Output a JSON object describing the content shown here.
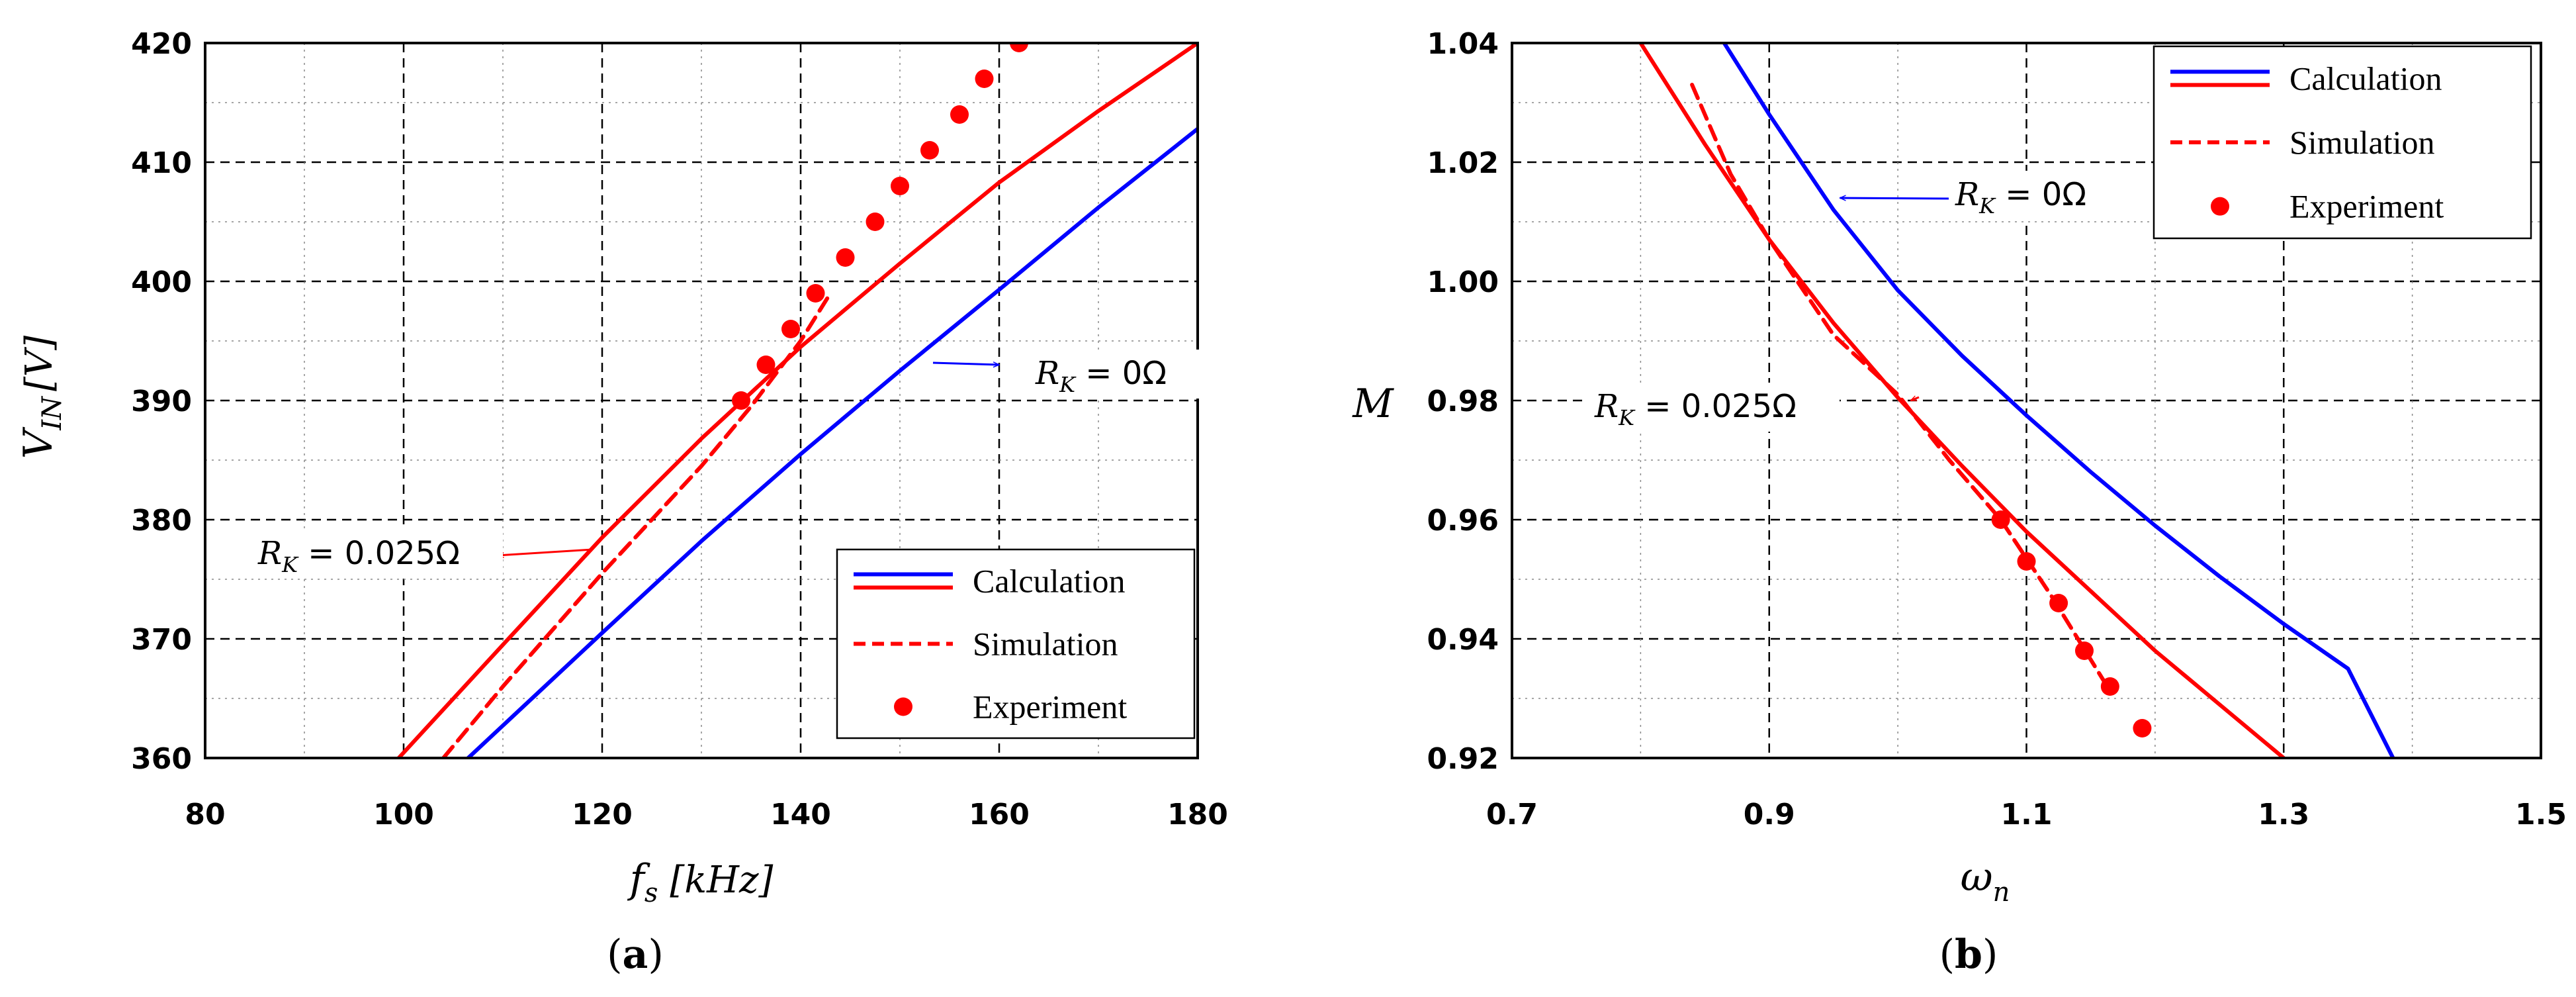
{
  "chart_data": [
    {
      "type": "line",
      "id": "a",
      "caption": {
        "open": "(",
        "letter": "a",
        "close": ")"
      },
      "xlabel": {
        "main": "f",
        "sub": "s",
        "unit": "[kHz]"
      },
      "ylabel": {
        "main": "V",
        "sub": "IN",
        "unit": "[V]"
      },
      "xlim": [
        80,
        180
      ],
      "ylim": [
        360,
        420
      ],
      "xticks": [
        80,
        100,
        120,
        140,
        160,
        180
      ],
      "yticks": [
        360,
        370,
        380,
        390,
        400,
        410,
        420
      ],
      "xtick_labels": [
        "80",
        "100",
        "120",
        "140",
        "160",
        "180"
      ],
      "ytick_labels": [
        "360",
        "370",
        "380",
        "390",
        "400",
        "410",
        "420"
      ],
      "grid": true,
      "series": [
        {
          "name": "Calculation",
          "label_group": "R_K = 0Ω",
          "color": "#0000ff",
          "style": "solid",
          "x": [
            106.5,
            120,
            130,
            140,
            150,
            160,
            170,
            180
          ],
          "y": [
            360,
            370.5,
            378.2,
            385.5,
            392.5,
            399.3,
            406.2,
            412.8
          ]
        },
        {
          "name": "Calculation",
          "label_group": "R_K = 0.025Ω",
          "color": "#ff0000",
          "style": "solid",
          "x": [
            99.5,
            110,
            120,
            130,
            140,
            150,
            160,
            170,
            180
          ],
          "y": [
            360,
            369.5,
            378.5,
            386.8,
            394.5,
            401.5,
            408.3,
            414.3,
            420
          ]
        },
        {
          "name": "Simulation",
          "label_group": "R_K = 0.025Ω",
          "color": "#ff0000",
          "style": "dashed",
          "x": [
            104,
            110,
            120,
            130,
            135,
            140,
            143
          ],
          "y": [
            360,
            366,
            375.5,
            384.5,
            389.5,
            395,
            399
          ]
        },
        {
          "name": "Experiment",
          "color": "#ff0000",
          "style": "markers",
          "x": [
            134,
            136.5,
            139,
            141.5,
            144.5,
            147.5,
            150,
            153,
            156,
            158.5,
            162
          ],
          "y": [
            390,
            393,
            396,
            399,
            402,
            405,
            408,
            411,
            414,
            417,
            420
          ]
        }
      ],
      "legend": {
        "position": "bottom-right",
        "entries": [
          "Calculation",
          "Simulation",
          "Experiment"
        ]
      },
      "annotations": [
        {
          "main": "R",
          "sub": "K",
          "rest": " = 0Ω",
          "arrow_to": [
            160,
            393
          ]
        },
        {
          "main": "R",
          "sub": "K",
          "rest": " = 0.025Ω",
          "arrow_to": [
            109.5,
            377
          ]
        }
      ]
    },
    {
      "type": "line",
      "id": "b",
      "caption": {
        "open": "(",
        "letter": "b",
        "close": ")"
      },
      "xlabel": {
        "main": "ω",
        "sub": "n",
        "unit": ""
      },
      "ylabel": {
        "main": "M",
        "sub": "",
        "unit": ""
      },
      "xlim": [
        0.7,
        1.5
      ],
      "ylim": [
        0.92,
        1.04
      ],
      "xticks": [
        0.7,
        0.9,
        1.1,
        1.3,
        1.5
      ],
      "yticks": [
        0.92,
        0.94,
        0.96,
        0.98,
        1.0,
        1.02,
        1.04
      ],
      "xtick_labels": [
        "0.7",
        "0.9",
        "1.1",
        "1.3",
        "1.5"
      ],
      "ytick_labels": [
        "0.92",
        "0.94",
        "0.96",
        "0.98",
        "1.00",
        "1.02",
        "1.04"
      ],
      "grid": true,
      "series": [
        {
          "name": "Calculation",
          "label_group": "R_K = 0Ω",
          "color": "#0000ff",
          "style": "solid",
          "x": [
            0.865,
            0.9,
            0.95,
            1.0,
            1.05,
            1.1,
            1.15,
            1.2,
            1.25,
            1.3,
            1.35,
            1.385
          ],
          "y": [
            1.04,
            1.028,
            1.012,
            0.9985,
            0.9875,
            0.9775,
            0.968,
            0.959,
            0.9505,
            0.9425,
            0.935,
            0.92
          ]
        },
        {
          "name": "Calculation",
          "label_group": "R_K = 0.025Ω",
          "color": "#ff0000",
          "style": "solid",
          "x": [
            0.8,
            0.85,
            0.9,
            0.95,
            1.0,
            1.05,
            1.1,
            1.15,
            1.2,
            1.25,
            1.3
          ],
          "y": [
            1.04,
            1.023,
            1.007,
            0.993,
            0.9805,
            0.969,
            0.958,
            0.948,
            0.938,
            0.929,
            0.92
          ]
        },
        {
          "name": "Simulation",
          "label_group": "R_K = 0.025Ω",
          "color": "#ff0000",
          "style": "dashed",
          "x": [
            0.84,
            0.87,
            0.9,
            0.95,
            1.0,
            1.04,
            1.08,
            1.12,
            1.16
          ],
          "y": [
            1.033,
            1.018,
            1.007,
            0.991,
            0.981,
            0.97,
            0.96,
            0.947,
            0.933
          ]
        },
        {
          "name": "Experiment",
          "color": "#ff0000",
          "style": "markers",
          "x": [
            1.08,
            1.1,
            1.125,
            1.145,
            1.165,
            1.19
          ],
          "y": [
            0.96,
            0.953,
            0.946,
            0.938,
            0.932,
            0.925
          ]
        }
      ],
      "legend": {
        "position": "top-right",
        "entries": [
          "Calculation",
          "Simulation",
          "Experiment"
        ]
      },
      "annotations": [
        {
          "main": "R",
          "sub": "K",
          "rest": " = 0Ω",
          "arrow_to": [
            0.955,
            1.014
          ]
        },
        {
          "main": "R",
          "sub": "K",
          "rest": " = 0.025Ω",
          "arrow_to": [
            1.01,
            0.98
          ]
        }
      ]
    }
  ]
}
